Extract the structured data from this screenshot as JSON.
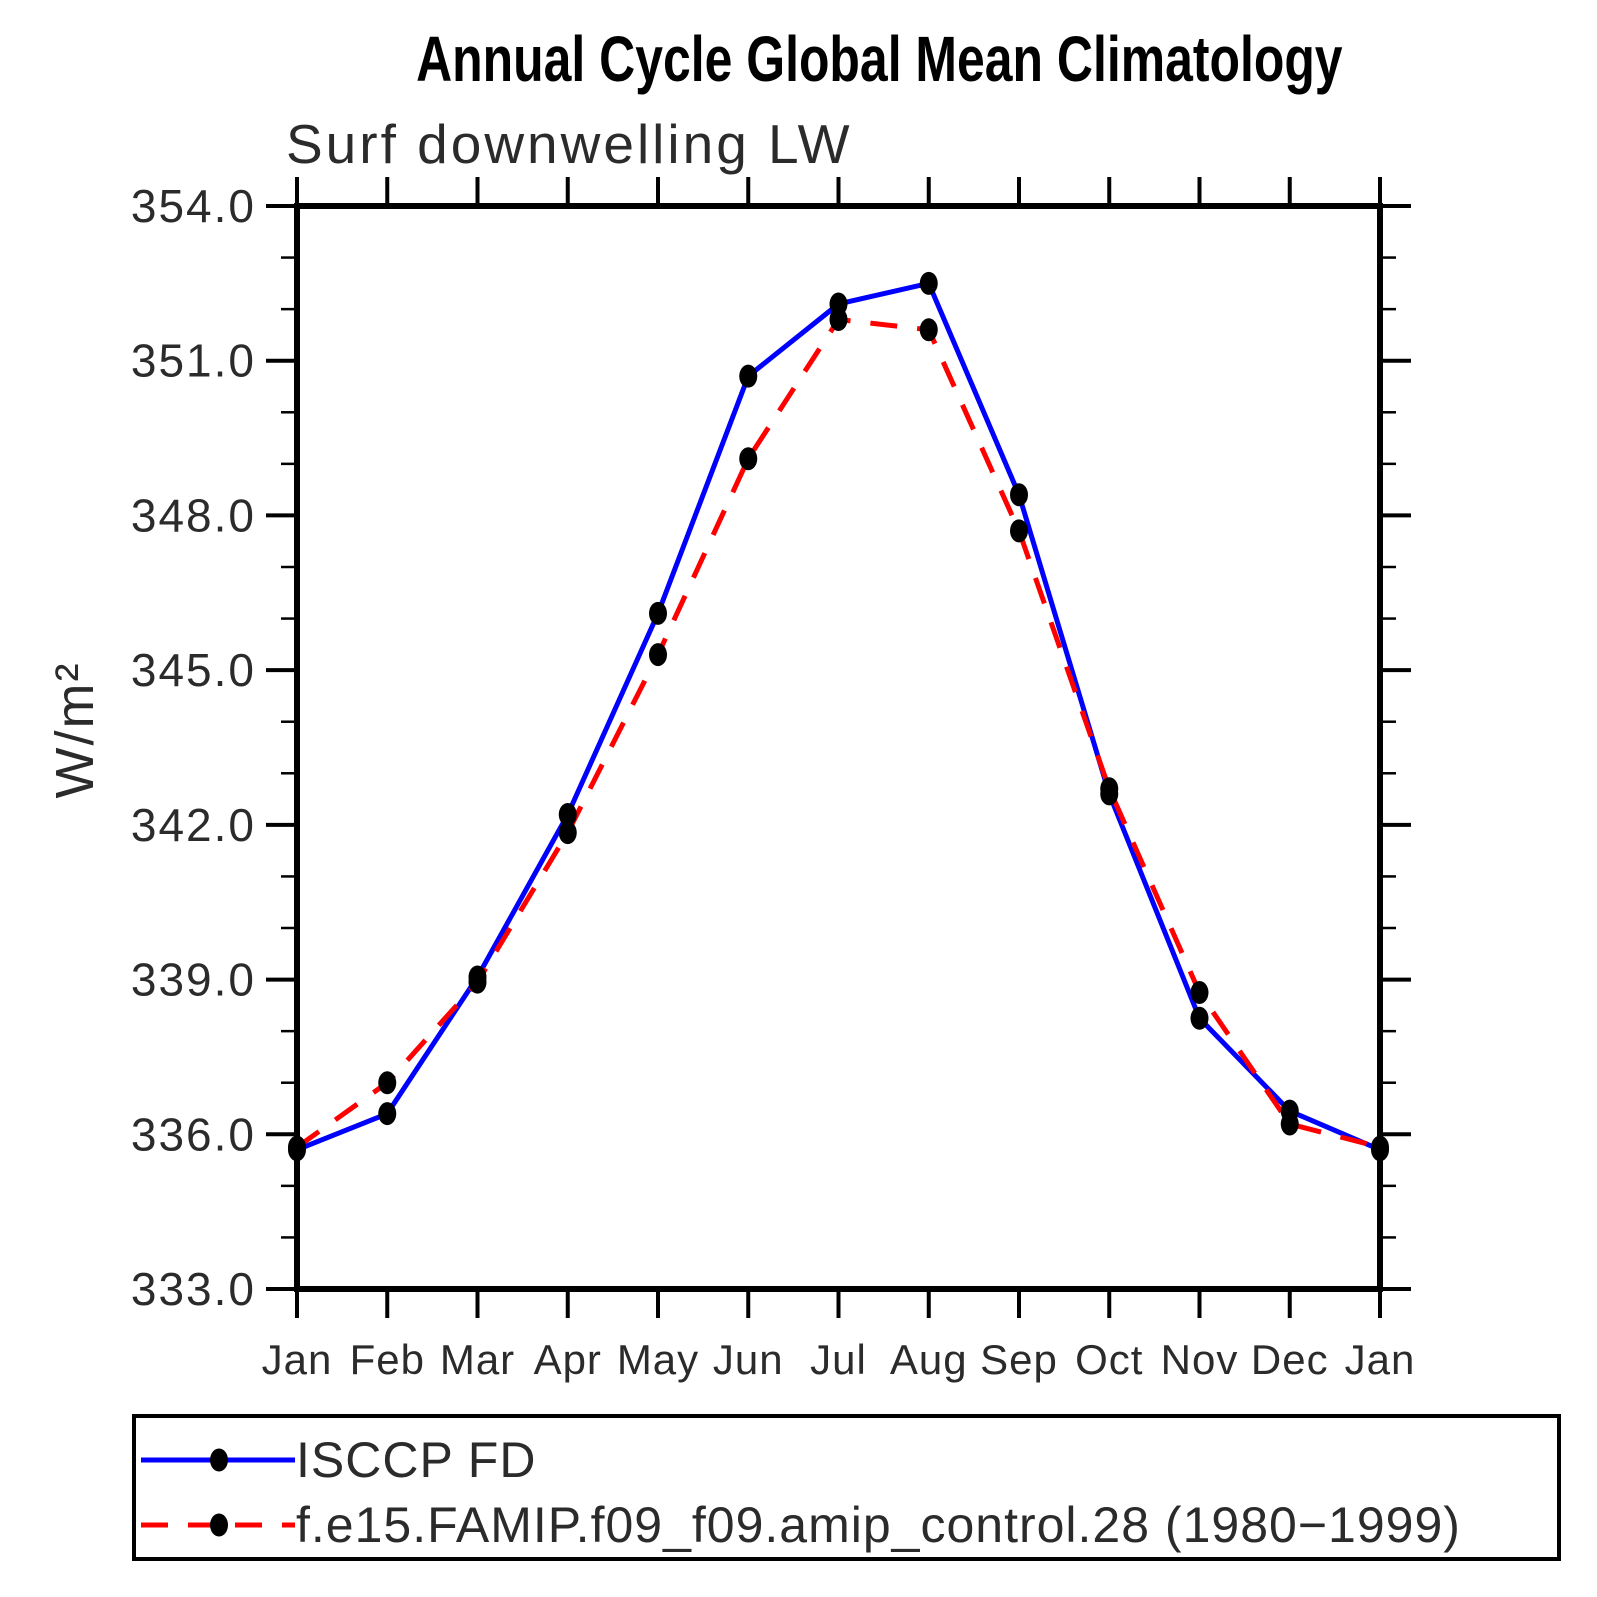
{
  "title": "Annual Cycle Global Mean Climatology",
  "subtitle": "Surf downwelling LW",
  "ylabel": "W/m²",
  "chart_data": {
    "type": "line",
    "title": "Annual Cycle Global Mean Climatology",
    "subtitle": "Surf downwelling LW",
    "xlabel": "",
    "ylabel": "W/m²",
    "categories": [
      "Jan",
      "Feb",
      "Mar",
      "Apr",
      "May",
      "Jun",
      "Jul",
      "Aug",
      "Sep",
      "Oct",
      "Nov",
      "Dec",
      "Jan"
    ],
    "series": [
      {
        "name": "ISCCP FD",
        "color": "#0000ff",
        "line_style": "solid",
        "marker": "filled-circle",
        "marker_color": "#000000",
        "values": [
          335.7,
          336.4,
          339.05,
          342.2,
          346.1,
          350.7,
          352.1,
          352.5,
          348.4,
          342.6,
          338.25,
          336.45,
          335.7
        ]
      },
      {
        "name": "f.e15.FAMIP.f09_f09.amip_control.28 (1980−1999)",
        "color": "#ff0000",
        "line_style": "dashed",
        "marker": "filled-circle",
        "marker_color": "#000000",
        "values": [
          335.75,
          337.0,
          338.95,
          341.85,
          345.3,
          349.1,
          351.8,
          351.6,
          347.7,
          342.7,
          338.75,
          336.2,
          335.75
        ]
      }
    ],
    "ylim": [
      333.0,
      354.0
    ],
    "ytick_major_step": 3.0,
    "ytick_minor_step": 1.0,
    "ytick_labels": [
      "354.0",
      "351.0",
      "348.0",
      "345.0",
      "342.0",
      "339.0",
      "336.0",
      "333.0"
    ],
    "grid": "off",
    "legend_position": "bottom"
  }
}
